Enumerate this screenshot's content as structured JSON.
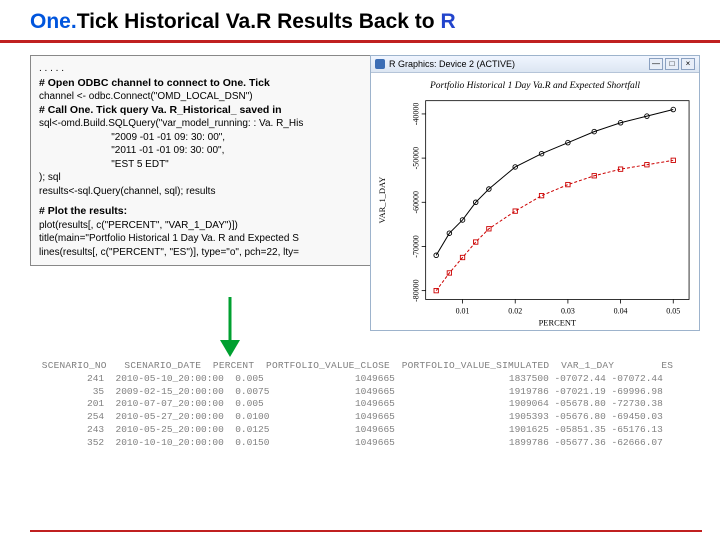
{
  "title": {
    "part1": "One.",
    "part2": "Tick",
    "part3": " Historical Va.",
    "part4": "R Results Back to ",
    "part5": "R"
  },
  "code": {
    "dots": ". . . . .",
    "c1": "# Open ODBC channel to connect to One. Tick",
    "l1": "channel <- odbc.Connect(\"OMD_LOCAL_DSN\")",
    "c2": "# Call One. Tick query Va. R_Historical_ saved in",
    "l2": "sql<-omd.Build.SQLQuery(\"var_model_running: : Va. R_His",
    "l3": "                          \"2009 -01 -01 09: 30: 00\",",
    "l4": "                          \"2011 -01 -01 09: 30: 00\",",
    "l5": "                          \"EST 5 EDT\"",
    "l6": "); sql",
    "l7": "results<-sql.Query(channel, sql); results",
    "c3": "# Plot the results:",
    "l8": "plot(results[, c(\"PERCENT\", \"VAR_1_DAY\")])",
    "l9": "title(main=\"Portfolio Historical 1 Day Va. R and Expected S",
    "l10": "lines(results[, c(\"PERCENT\", \"ES\")], type=\"o\", pch=22, lty="
  },
  "rwin": {
    "title": "R Graphics: Device 2 (ACTIVE)",
    "min": "—",
    "max": "□",
    "close": "×"
  },
  "chart": {
    "title": "Portfolio Historical 1 Day Va.R and Expected Shortfall",
    "ylabel": "VAR_1_DAY",
    "xlabel": "PERCENT",
    "x_ticks": [
      "0.01",
      "0.02",
      "0.03",
      "0.04",
      "0.05"
    ],
    "y_ticks": [
      "-80000",
      "-70000",
      "-60000",
      "-50000",
      "-40000"
    ],
    "series1": {
      "type": "scatter-line",
      "color": "#000000",
      "marker": "circle",
      "x": [
        0.005,
        0.0075,
        0.01,
        0.0125,
        0.015,
        0.02,
        0.025,
        0.03,
        0.035,
        0.04,
        0.045,
        0.05
      ],
      "y": [
        -72000,
        -67000,
        -64000,
        -60000,
        -57000,
        -52000,
        -49000,
        -46500,
        -44000,
        -42000,
        -40500,
        -39000
      ]
    },
    "series2": {
      "type": "scatter-line-dashed",
      "color": "#cc0000",
      "marker": "square",
      "x": [
        0.005,
        0.0075,
        0.01,
        0.0125,
        0.015,
        0.02,
        0.025,
        0.03,
        0.035,
        0.04,
        0.045,
        0.05
      ],
      "y": [
        -80000,
        -76000,
        -72500,
        -69000,
        -66000,
        -62000,
        -58500,
        -56000,
        -54000,
        -52500,
        -51500,
        -50500
      ]
    },
    "xlim": [
      0.003,
      0.053
    ],
    "ylim": [
      -82000,
      -37000
    ],
    "plot_bg": "#ffffff",
    "axis_color": "#000000"
  },
  "arrow": {
    "color": "#00a030",
    "stroke": 3
  },
  "table": {
    "header": "  SCENARIO_NO   SCENARIO_DATE  PERCENT  PORTFOLIO_VALUE_CLOSE  PORTFOLIO_VALUE_SIMULATED  VAR_1_DAY        ES",
    "rows": [
      "          241  2010-05-10_20:00:00  0.005                1049665                    1837500 -07072.44 -07072.44",
      "           35  2009-02-15_20:00:00  0.0075               1049665                    1919786 -07021.19 -69996.98",
      "          201  2010-07-07_20:00:00  0.005                1049665                    1909064 -05678.80 -72730.38",
      "          254  2010-05-27_20:00:00  0.0100               1049665                    1905393 -05676.80 -69450.03",
      "          243  2010-05-25_20:00:00  0.0125               1049665                    1901625 -05851.35 -65176.13",
      "          352  2010-10-10_20:00:00  0.0150               1049665                    1899786 -05677.36 -62666.07"
    ]
  }
}
